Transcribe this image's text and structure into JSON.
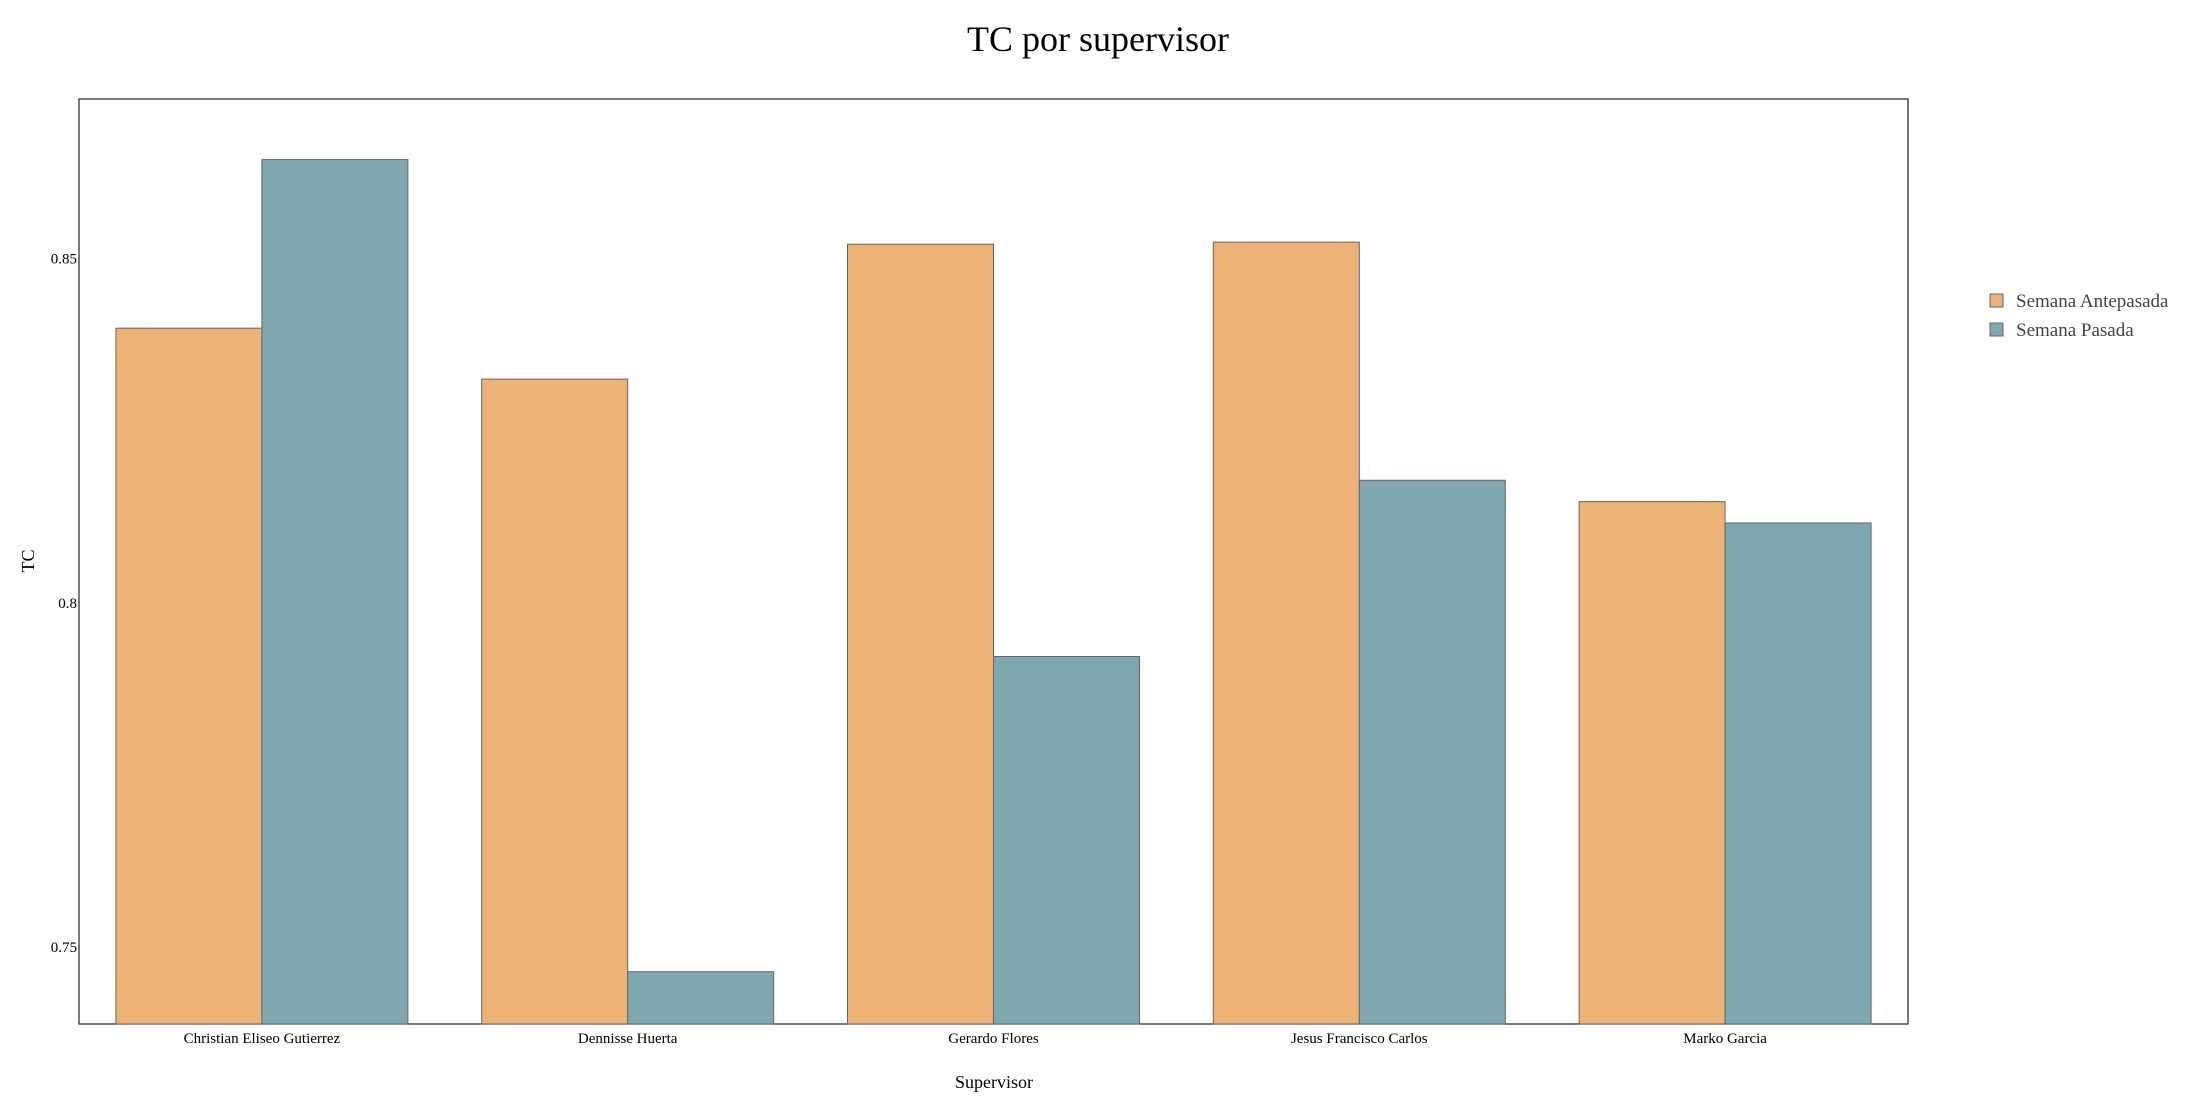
{
  "chart_data": {
    "type": "bar",
    "title": "TC por supervisor",
    "xlabel": "Supervisor",
    "ylabel": "TC",
    "categories": [
      "Christian Eliseo Gutierrez",
      "Dennisse Huerta",
      "Gerardo Flores",
      "Jesus Francisco Carlos",
      "Marko Garcia"
    ],
    "series": [
      {
        "name": "Semana Antepasada",
        "color": "#edb276",
        "values": [
          0.8399,
          0.8325,
          0.8521,
          0.8524,
          0.8147
        ]
      },
      {
        "name": "Semana Pasada",
        "color": "#7fa7b0",
        "values": [
          0.8644,
          0.7464,
          0.7922,
          0.8178,
          0.8116
        ]
      }
    ],
    "ylim": [
      0.7388,
      0.8732
    ],
    "yticks": [
      0.75,
      0.8,
      0.85
    ],
    "ytick_labels": [
      "0.75",
      "0.8",
      "0.85"
    ],
    "grid": false,
    "legend_position": "right"
  }
}
